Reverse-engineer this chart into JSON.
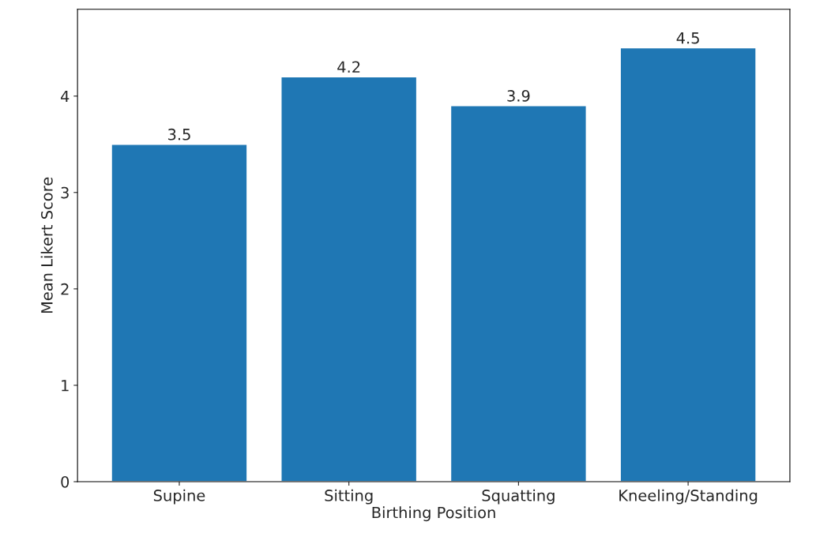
{
  "chart_data": {
    "type": "bar",
    "xlabel": "Birthing Position",
    "ylabel": "Mean Likert Score",
    "categories": [
      "Supine",
      "Sitting",
      "Squatting",
      "Kneeling/Standing"
    ],
    "values": [
      3.5,
      4.2,
      3.9,
      4.5
    ],
    "color": "#1f77b4",
    "ylim": [
      0,
      4.9
    ],
    "yticks": [
      0,
      1,
      2,
      3,
      4
    ],
    "grid": false,
    "data_labels": true
  }
}
